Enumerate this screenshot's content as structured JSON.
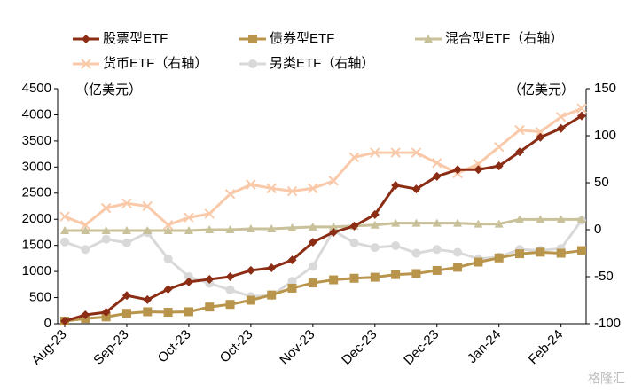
{
  "chart_data": {
    "type": "line",
    "y_label": "（亿美元）",
    "y2_label": "（亿美元）",
    "watermark": "格隆汇",
    "categories": [
      "Aug-23",
      null,
      null,
      "Sep-23",
      null,
      null,
      "Oct-23",
      null,
      null,
      "Oct-23",
      null,
      null,
      "Nov-23",
      null,
      null,
      "Dec-23",
      null,
      null,
      "Dec-23",
      null,
      null,
      "Jan-24",
      null,
      null,
      "Feb-24",
      null
    ],
    "series": [
      {
        "name": "股票型ETF",
        "color": "#8b2c14",
        "marker": "diamond",
        "values": [
          50,
          170,
          220,
          540,
          460,
          660,
          800,
          850,
          900,
          1020,
          1070,
          1220,
          1560,
          1750,
          1870,
          2090,
          2650,
          2580,
          2820,
          2950,
          2950,
          3020,
          3290,
          3570,
          3740,
          3980
        ]
      },
      {
        "name": "债券型ETF",
        "color": "#b8954a",
        "marker": "square",
        "values": [
          50,
          100,
          130,
          200,
          230,
          220,
          230,
          320,
          370,
          450,
          550,
          680,
          780,
          840,
          870,
          890,
          940,
          960,
          1020,
          1080,
          1180,
          1260,
          1340,
          1370,
          1350,
          1400
        ]
      },
      {
        "name": "混合型ETF（右轴）",
        "color": "#c8c19a",
        "marker": "triangle",
        "axis": "y2",
        "values": [
          -1,
          -1,
          -1,
          -1,
          -1,
          -1,
          -1,
          0,
          0,
          1,
          1,
          2,
          3,
          3,
          4,
          5,
          7,
          7,
          7,
          7,
          6,
          6,
          11,
          11,
          11,
          11
        ]
      },
      {
        "name": "货币ETF（右轴）",
        "color": "#f9c9a9",
        "marker": "cross",
        "axis": "y2",
        "values": [
          14,
          5,
          23,
          28,
          25,
          5,
          13,
          17,
          38,
          48,
          44,
          41,
          44,
          52,
          77,
          82,
          82,
          82,
          71,
          60,
          70,
          88,
          106,
          104,
          120,
          129
        ]
      },
      {
        "name": "另类ETF（右轴）",
        "color": "#d9d9d9",
        "marker": "circle",
        "axis": "y2",
        "values": [
          -13,
          -21,
          -10,
          -14,
          -3,
          -31,
          -50,
          -57,
          -64,
          -71,
          -70,
          -55,
          -39,
          -1,
          -14,
          -19,
          -17,
          -25,
          -21,
          -24,
          -31,
          -29,
          -21,
          -22,
          -20,
          10
        ]
      }
    ],
    "ylim": [
      0,
      4500
    ],
    "yticks": [
      0,
      500,
      1000,
      1500,
      2000,
      2500,
      3000,
      3500,
      4000,
      4500
    ],
    "y2lim": [
      -100,
      150
    ],
    "y2ticks": [
      -100,
      -50,
      0,
      50,
      100,
      150
    ]
  }
}
